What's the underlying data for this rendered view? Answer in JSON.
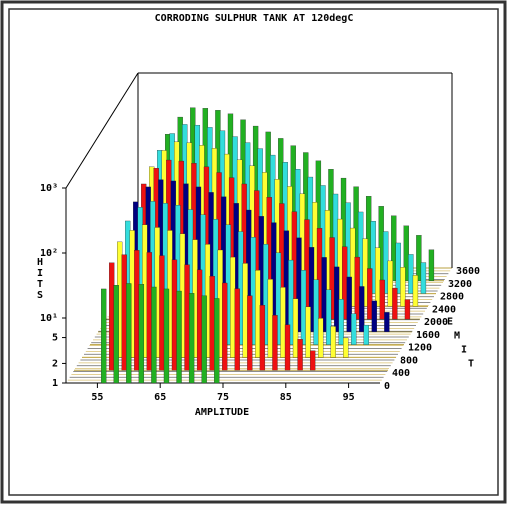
{
  "chart_data": {
    "type": "bar3d",
    "title": "CORRODING SULPHUR TANK AT 120degC",
    "x_label": "AMPLITUDE",
    "y_label": "HITS",
    "z_label": "TIME",
    "log_scale": "y",
    "x": [
      56,
      58,
      60,
      62,
      64,
      66,
      68,
      70,
      72,
      74,
      76,
      78,
      80,
      82,
      84,
      86,
      88,
      90,
      92,
      94,
      96,
      98
    ],
    "xlim": [
      50,
      100
    ],
    "xticks": [
      55,
      65,
      75,
      85,
      95
    ],
    "ylim": [
      1,
      1000
    ],
    "yticks": [
      1,
      2,
      5,
      {
        "value": 10,
        "label": "10¹"
      },
      {
        "value": 100,
        "label": "10²"
      },
      {
        "value": 1000,
        "label": "10³"
      }
    ],
    "zlim": [
      0,
      3600
    ],
    "zticks": [
      0,
      400,
      800,
      1200,
      1600,
      2000,
      2400,
      2800,
      3200,
      3600
    ],
    "series": [
      {
        "z": 0,
        "color": "#22b022",
        "values": [
          28,
          32,
          34,
          33,
          30,
          28,
          26,
          24,
          22,
          20,
          null,
          null,
          null,
          null,
          null,
          null,
          null,
          null,
          null,
          null,
          null,
          null
        ]
      },
      {
        "z": 400,
        "color": "#ee1111",
        "values": [
          45,
          60,
          70,
          65,
          58,
          50,
          42,
          35,
          28,
          22,
          18,
          14,
          10,
          7,
          5,
          3,
          2,
          null,
          null,
          null,
          null,
          null
        ]
      },
      {
        "z": 800,
        "color": "#ffff33",
        "values": [
          60,
          90,
          110,
          100,
          90,
          80,
          65,
          55,
          45,
          35,
          28,
          22,
          16,
          12,
          8,
          6,
          4,
          3,
          2,
          null,
          null,
          null
        ]
      },
      {
        "z": 1200,
        "color": "#33dddd",
        "values": [
          80,
          130,
          160,
          150,
          140,
          120,
          100,
          85,
          70,
          55,
          45,
          35,
          26,
          20,
          14,
          10,
          7,
          5,
          3,
          2,
          null,
          null
        ]
      },
      {
        "z": 1600,
        "color": "#000080",
        "values": [
          100,
          170,
          220,
          210,
          190,
          170,
          140,
          120,
          95,
          75,
          60,
          48,
          36,
          28,
          20,
          14,
          10,
          7,
          5,
          3,
          2,
          null
        ]
      },
      {
        "z": 2000,
        "color": "#ee1111",
        "values": [
          120,
          210,
          280,
          270,
          250,
          220,
          180,
          150,
          120,
          95,
          75,
          60,
          45,
          34,
          25,
          18,
          13,
          9,
          6,
          4,
          3,
          2
        ]
      },
      {
        "z": 2400,
        "color": "#ffff33",
        "values": [
          140,
          250,
          340,
          330,
          300,
          270,
          220,
          180,
          145,
          115,
          90,
          70,
          54,
          40,
          30,
          22,
          16,
          11,
          8,
          5,
          4,
          3
        ]
      },
      {
        "z": 2800,
        "color": "#33dddd",
        "values": [
          160,
          290,
          400,
          390,
          360,
          320,
          260,
          210,
          170,
          135,
          105,
          82,
          62,
          46,
          34,
          25,
          18,
          13,
          9,
          6,
          4,
          3
        ]
      },
      {
        "z": 3200,
        "color": "#22b022",
        "values": [
          180,
          330,
          460,
          450,
          420,
          370,
          300,
          240,
          195,
          155,
          120,
          94,
          70,
          52,
          38,
          28,
          20,
          14,
          10,
          7,
          5,
          3
        ]
      }
    ]
  }
}
